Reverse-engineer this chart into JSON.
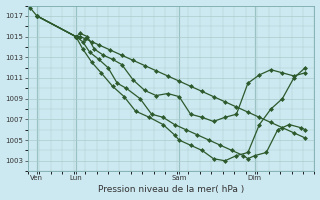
{
  "background_color": "#cce8f0",
  "grid_color": "#aacccc",
  "line_color": "#2d5a2d",
  "title": "Pression niveau de la mer( hPa )",
  "ylim": [
    1002.5,
    1018.0
  ],
  "yticks": [
    1003,
    1005,
    1007,
    1009,
    1011,
    1013,
    1015,
    1017
  ],
  "xtick_labels": [
    "Ven",
    "Lun",
    "Sam",
    "Dim"
  ],
  "xtick_positions": [
    0.3,
    2.0,
    6.5,
    9.8
  ],
  "vlines": [
    0.3,
    2.0,
    6.5,
    9.8
  ],
  "line1_x": [
    0.0,
    0.3,
    2.0,
    2.2,
    2.4,
    2.7,
    3.0,
    3.5,
    4.0,
    4.5,
    5.0,
    5.5,
    6.0,
    6.5,
    7.0,
    7.5,
    8.0,
    8.5,
    9.0,
    9.5,
    10.0,
    10.5,
    11.0,
    11.5,
    12.0
  ],
  "line1_y": [
    1017.8,
    1017.0,
    1015.0,
    1015.0,
    1014.8,
    1014.5,
    1014.2,
    1013.7,
    1013.2,
    1012.7,
    1012.2,
    1011.7,
    1011.2,
    1010.7,
    1010.2,
    1009.7,
    1009.2,
    1008.7,
    1008.2,
    1007.7,
    1007.2,
    1006.7,
    1006.2,
    1005.7,
    1005.2
  ],
  "line2_x": [
    0.3,
    2.0,
    2.2,
    2.5,
    2.8,
    3.2,
    3.6,
    4.0,
    4.5,
    5.0,
    5.5,
    6.0,
    6.5,
    7.0,
    7.5,
    8.0,
    8.5,
    9.0,
    9.5,
    10.0,
    10.5,
    11.0,
    11.5,
    12.0
  ],
  "line2_y": [
    1017.0,
    1015.0,
    1015.3,
    1015.0,
    1013.8,
    1013.2,
    1012.8,
    1012.3,
    1010.8,
    1009.8,
    1009.3,
    1009.5,
    1009.2,
    1007.5,
    1007.2,
    1006.8,
    1007.2,
    1007.5,
    1010.5,
    1011.3,
    1011.8,
    1011.5,
    1011.2,
    1011.5
  ],
  "line3_x": [
    0.3,
    2.0,
    2.3,
    2.6,
    3.0,
    3.4,
    3.8,
    4.2,
    4.8,
    5.3,
    5.8,
    6.3,
    6.8,
    7.3,
    7.8,
    8.3,
    8.8,
    9.3,
    9.5,
    9.8,
    10.3,
    10.8,
    11.3,
    11.8,
    12.0
  ],
  "line3_y": [
    1017.0,
    1015.0,
    1014.5,
    1013.5,
    1012.8,
    1012.0,
    1010.5,
    1010.0,
    1009.0,
    1007.5,
    1007.2,
    1006.5,
    1006.0,
    1005.5,
    1005.0,
    1004.5,
    1004.0,
    1003.5,
    1003.2,
    1003.5,
    1003.8,
    1006.0,
    1006.5,
    1006.2,
    1006.0
  ],
  "line4_x": [
    0.3,
    2.0,
    2.3,
    2.7,
    3.1,
    3.6,
    4.1,
    4.6,
    5.2,
    5.8,
    6.3,
    6.5,
    7.0,
    7.5,
    8.0,
    8.5,
    9.0,
    9.5,
    10.0,
    10.5,
    11.0,
    11.5,
    12.0
  ],
  "line4_y": [
    1017.0,
    1015.0,
    1013.8,
    1012.5,
    1011.5,
    1010.2,
    1009.2,
    1007.8,
    1007.2,
    1006.5,
    1005.5,
    1005.0,
    1004.5,
    1004.0,
    1003.2,
    1003.0,
    1003.5,
    1003.8,
    1006.5,
    1008.0,
    1009.0,
    1011.0,
    1012.0
  ]
}
